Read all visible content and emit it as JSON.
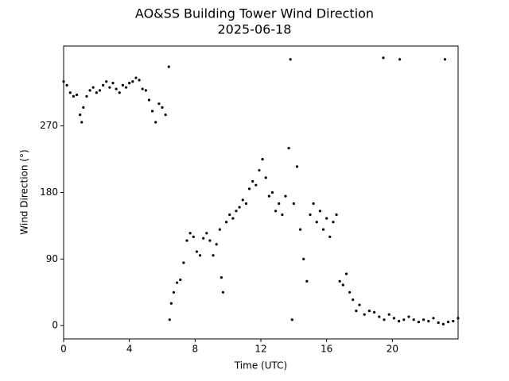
{
  "chart_data": {
    "type": "scatter",
    "title": "AO&SS Building Tower Wind Direction",
    "subtitle": "2025-06-18",
    "x_label": "Time (UTC)",
    "y_label": "Wind Direction (°)",
    "color": "#000000",
    "xlim": [
      0,
      24
    ],
    "xticks": [
      0,
      4,
      8,
      12,
      16,
      20
    ],
    "ylim": [
      -18,
      378
    ],
    "yticks": [
      0,
      90,
      180,
      270
    ],
    "x": [
      0,
      0.2,
      0.4,
      0.6,
      0.8,
      1.0,
      1.1,
      1.2,
      1.4,
      1.6,
      1.8,
      2.0,
      2.2,
      2.4,
      2.6,
      2.8,
      3.0,
      3.2,
      3.4,
      3.6,
      3.8,
      4.0,
      4.2,
      4.4,
      4.6,
      4.8,
      5.0,
      5.2,
      5.4,
      5.6,
      5.8,
      6.0,
      6.2,
      6.4,
      6.45,
      6.55,
      6.7,
      6.9,
      7.1,
      7.3,
      7.5,
      7.7,
      7.9,
      8.1,
      8.3,
      8.5,
      8.7,
      8.9,
      9.1,
      9.3,
      9.5,
      9.6,
      9.7,
      9.9,
      10.1,
      10.3,
      10.5,
      10.7,
      10.9,
      11.1,
      11.3,
      11.5,
      11.7,
      11.9,
      12.1,
      12.3,
      12.5,
      12.7,
      12.9,
      13.1,
      13.3,
      13.5,
      13.7,
      13.8,
      13.9,
      14.0,
      14.2,
      14.4,
      14.6,
      14.8,
      15.0,
      15.2,
      15.4,
      15.6,
      15.8,
      16.0,
      16.2,
      16.4,
      16.6,
      16.8,
      17.0,
      17.2,
      17.4,
      17.6,
      17.8,
      18.0,
      18.3,
      18.6,
      18.9,
      19.2,
      19.45,
      19.5,
      19.8,
      20.1,
      20.4,
      20.45,
      20.7,
      21.0,
      21.3,
      21.6,
      21.9,
      22.2,
      22.5,
      22.8,
      23.1,
      23.2,
      23.4,
      23.7,
      24.0
    ],
    "values": [
      330,
      325,
      315,
      310,
      312,
      285,
      275,
      295,
      310,
      318,
      322,
      315,
      318,
      325,
      330,
      322,
      328,
      320,
      315,
      325,
      322,
      328,
      330,
      335,
      332,
      320,
      318,
      305,
      290,
      275,
      300,
      295,
      285,
      350,
      8,
      30,
      45,
      58,
      62,
      85,
      115,
      125,
      120,
      100,
      95,
      118,
      125,
      115,
      95,
      110,
      130,
      65,
      45,
      140,
      150,
      145,
      155,
      160,
      170,
      165,
      185,
      195,
      190,
      210,
      225,
      200,
      175,
      180,
      155,
      165,
      150,
      175,
      240,
      360,
      8,
      165,
      215,
      130,
      90,
      60,
      150,
      165,
      140,
      155,
      130,
      145,
      120,
      140,
      150,
      60,
      55,
      70,
      45,
      35,
      20,
      28,
      15,
      20,
      18,
      12,
      362,
      8,
      15,
      10,
      6,
      360,
      8,
      12,
      8,
      5,
      8,
      6,
      10,
      4,
      2,
      360,
      5,
      6,
      10
    ]
  }
}
